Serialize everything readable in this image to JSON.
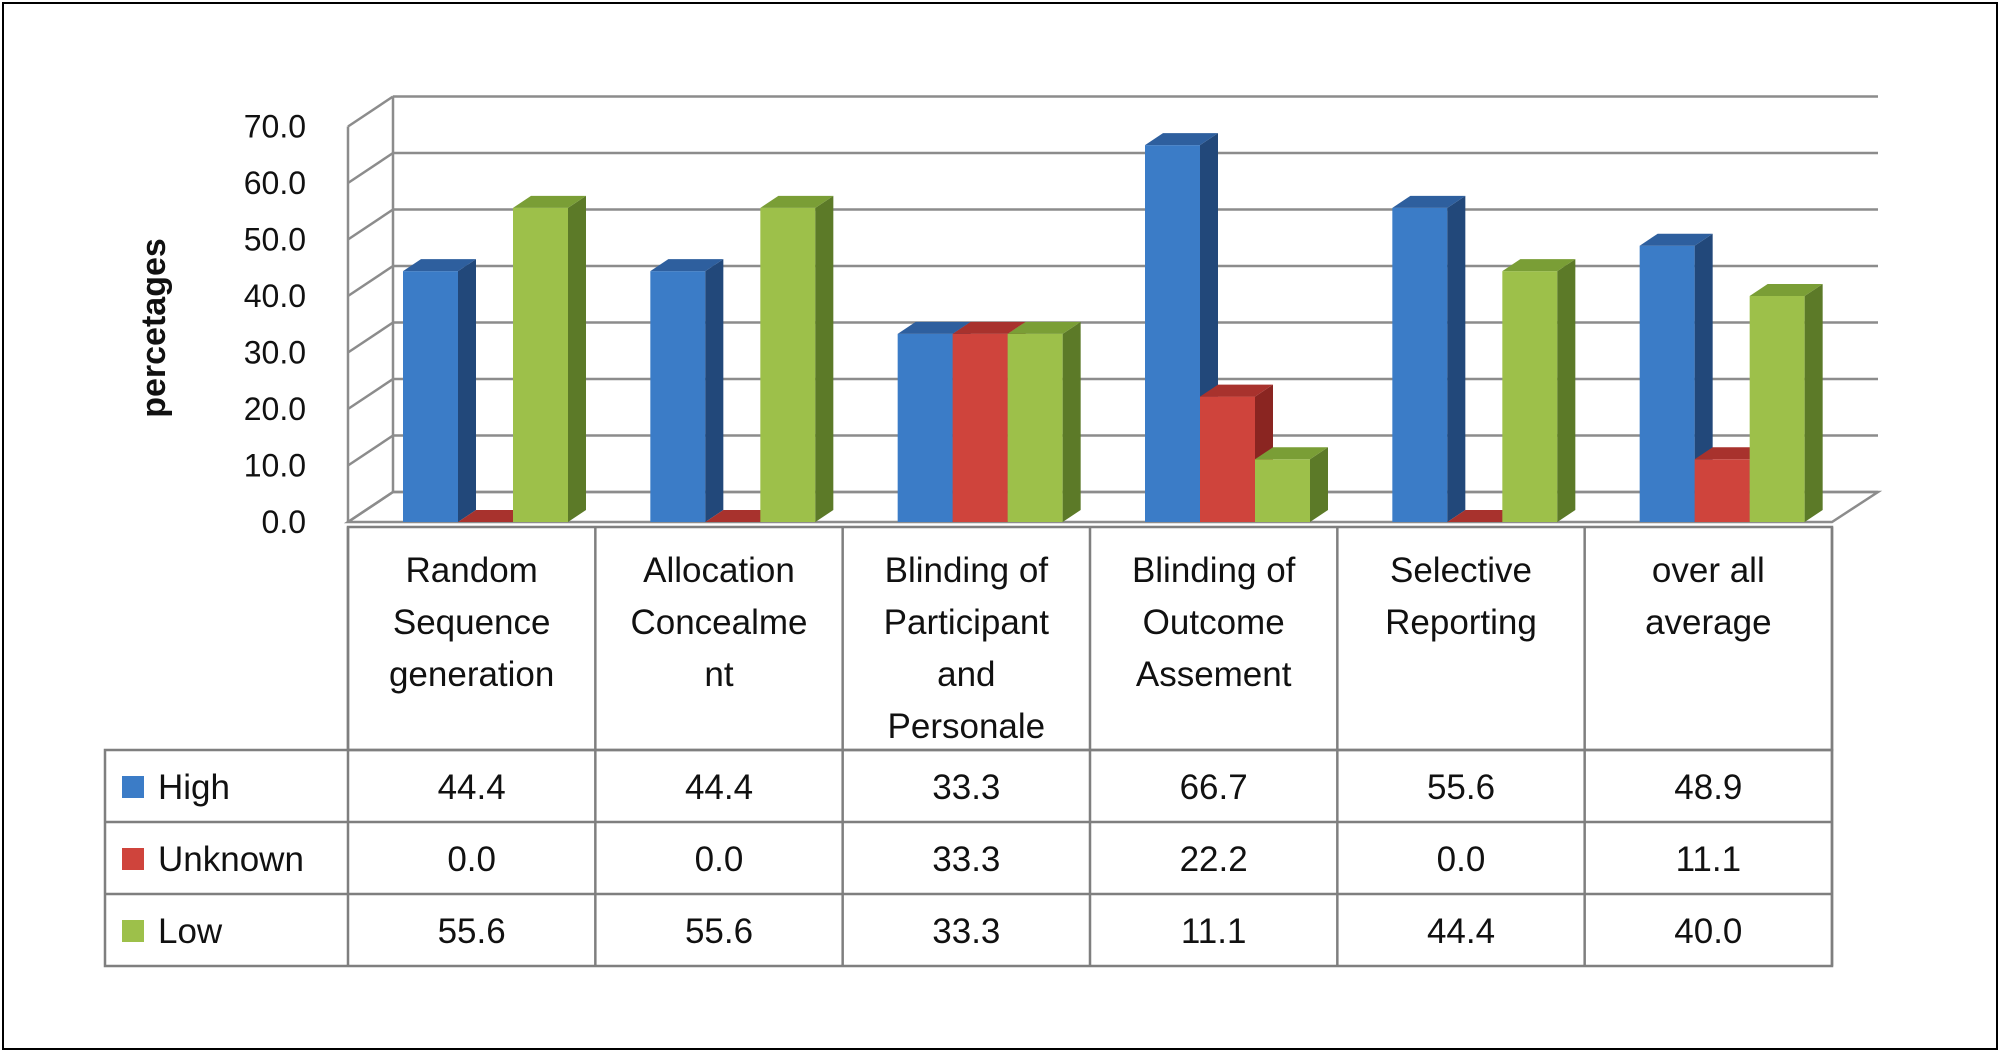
{
  "chart_data": {
    "type": "bar",
    "ylabel": "percetages",
    "ylim": [
      0,
      70
    ],
    "yticks": [
      "0.0",
      "10.0",
      "20.0",
      "30.0",
      "40.0",
      "50.0",
      "60.0",
      "70.0"
    ],
    "categories": [
      [
        "Random",
        "Sequence",
        "generation"
      ],
      [
        "Allocation",
        "Concealme",
        "nt"
      ],
      [
        "Blinding of",
        "Participant",
        "and",
        "Personale"
      ],
      [
        "Blinding of",
        "Outcome",
        "Assement"
      ],
      [
        "Selective",
        "Reporting"
      ],
      [
        "over all",
        "average"
      ]
    ],
    "series": [
      {
        "name": "High",
        "color": "#3B7CC7",
        "side": "#22487A",
        "top": "#2E5F9E",
        "values": [
          44.4,
          44.4,
          33.3,
          66.7,
          55.6,
          48.9
        ],
        "labels": [
          "44.4",
          "44.4",
          "33.3",
          "66.7",
          "55.6",
          "48.9"
        ]
      },
      {
        "name": "Unknown",
        "color": "#CF443C",
        "side": "#8A2521",
        "top": "#A8322D",
        "values": [
          0.0,
          0.0,
          33.3,
          22.2,
          0.0,
          11.1
        ],
        "labels": [
          "0.0",
          "0.0",
          "33.3",
          "22.2",
          "0.0",
          "11.1"
        ]
      },
      {
        "name": "Low",
        "color": "#9DC04A",
        "side": "#5C7A28",
        "top": "#7A9E36",
        "values": [
          55.6,
          55.6,
          33.3,
          11.1,
          44.4,
          40.0
        ],
        "labels": [
          "55.6",
          "55.6",
          "33.3",
          "11.1",
          "44.4",
          "40.0"
        ]
      }
    ],
    "grid": true,
    "legend": "data-table"
  }
}
